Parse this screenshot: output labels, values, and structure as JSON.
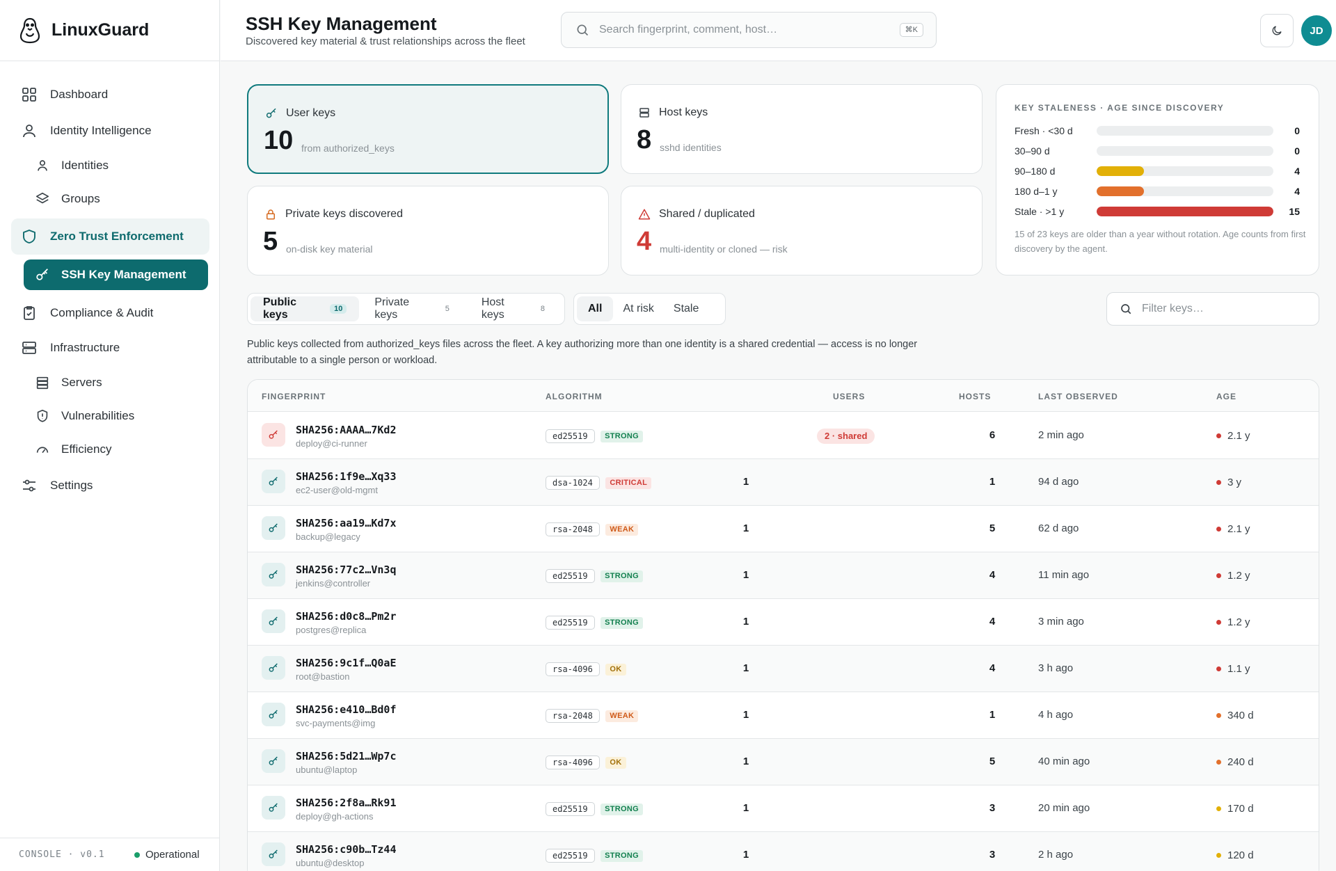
{
  "app": {
    "name": "LinuxGuard",
    "footer_version": "CONSOLE · v0.1",
    "footer_status": "Operational"
  },
  "sidebar": {
    "items": [
      {
        "label": "Dashboard",
        "icon": "grid-icon"
      },
      {
        "label": "Identity Intelligence",
        "icon": "user-icon"
      },
      {
        "label": "Identities",
        "icon": "user-icon"
      },
      {
        "label": "Groups",
        "icon": "layers-icon"
      },
      {
        "label": "Zero Trust Enforcement",
        "icon": "shield-icon"
      },
      {
        "label": "SSH Key Management",
        "icon": "key-icon"
      },
      {
        "label": "Compliance & Audit",
        "icon": "clipboard-check-icon"
      },
      {
        "label": "Infrastructure",
        "icon": "server-icon"
      },
      {
        "label": "Servers",
        "icon": "server-icon"
      },
      {
        "label": "Vulnerabilities",
        "icon": "shield-alert-icon"
      },
      {
        "label": "Efficiency",
        "icon": "gauge-icon"
      },
      {
        "label": "Settings",
        "icon": "sliders-icon"
      }
    ]
  },
  "header": {
    "title": "SSH Key Management",
    "subtitle": "Discovered key material & trust relationships across the fleet",
    "search_placeholder": "Search fingerprint, comment, host…",
    "search_shortcut": "⌘K",
    "avatar_initials": "JD"
  },
  "cards": {
    "user_keys": {
      "label": "User keys",
      "value": "10",
      "note": "from authorized_keys"
    },
    "host_keys": {
      "label": "Host keys",
      "value": "8",
      "note": "sshd identities"
    },
    "private_keys": {
      "label": "Private keys discovered",
      "value": "5",
      "note": "on-disk key material"
    },
    "shared": {
      "label": "Shared / duplicated",
      "value": "4",
      "note": "multi-identity or cloned — risk"
    }
  },
  "staleness": {
    "title": "KEY STALENESS · AGE SINCE DISCOVERY",
    "rows": [
      {
        "label": "Fresh · <30 d",
        "count": 0,
        "fraction": 0,
        "color": "#e2b007"
      },
      {
        "label": "30–90 d",
        "count": 0,
        "fraction": 0,
        "color": "#e2b007"
      },
      {
        "label": "90–180 d",
        "count": 4,
        "fraction": 0.267,
        "color": "#e2b007"
      },
      {
        "label": "180 d–1 y",
        "count": 4,
        "fraction": 0.267,
        "color": "#e2702c"
      },
      {
        "label": "Stale · >1 y",
        "count": 15,
        "fraction": 1.0,
        "color": "#cf3b36"
      }
    ],
    "note": "15 of 23 keys are older than a year without rotation. Age counts from first discovery by the agent."
  },
  "tabs": {
    "type": [
      {
        "label": "Public keys",
        "count": "10"
      },
      {
        "label": "Private keys",
        "count": "5"
      },
      {
        "label": "Host keys",
        "count": "8"
      }
    ],
    "filter": [
      "All",
      "At risk",
      "Stale"
    ],
    "filter_placeholder": "Filter keys…"
  },
  "description": "Public keys collected from authorized_keys files across the fleet. A key authorizing more than one identity is a shared credential — access is no longer attributable to a single person or workload.",
  "table": {
    "columns": [
      "FINGERPRINT",
      "ALGORITHM",
      "USERS",
      "HOSTS",
      "LAST OBSERVED",
      "AGE"
    ],
    "rows": [
      {
        "fingerprint": "SHA256:AAAA…7Kd2",
        "comment": "deploy@ci-runner",
        "algorithm": "ed25519",
        "strength": "STRONG",
        "users": "2 · shared",
        "hosts": "6",
        "last": "2 min ago",
        "age": "2.1 y",
        "age_color": "#cf3b36"
      },
      {
        "fingerprint": "SHA256:1f9e…Xq33",
        "comment": "ec2-user@old-mgmt",
        "algorithm": "dsa-1024",
        "strength": "CRITICAL",
        "users": "1",
        "hosts": "1",
        "last": "94 d ago",
        "age": "3 y",
        "age_color": "#cf3b36"
      },
      {
        "fingerprint": "SHA256:aa19…Kd7x",
        "comment": "backup@legacy",
        "algorithm": "rsa-2048",
        "strength": "WEAK",
        "users": "1",
        "hosts": "5",
        "last": "62 d ago",
        "age": "2.1 y",
        "age_color": "#cf3b36"
      },
      {
        "fingerprint": "SHA256:77c2…Vn3q",
        "comment": "jenkins@controller",
        "algorithm": "ed25519",
        "strength": "STRONG",
        "users": "1",
        "hosts": "4",
        "last": "11 min ago",
        "age": "1.2 y",
        "age_color": "#cf3b36"
      },
      {
        "fingerprint": "SHA256:d0c8…Pm2r",
        "comment": "postgres@replica",
        "algorithm": "ed25519",
        "strength": "STRONG",
        "users": "1",
        "hosts": "4",
        "last": "3 min ago",
        "age": "1.2 y",
        "age_color": "#cf3b36"
      },
      {
        "fingerprint": "SHA256:9c1f…Q0aE",
        "comment": "root@bastion",
        "algorithm": "rsa-4096",
        "strength": "OK",
        "users": "1",
        "hosts": "4",
        "last": "3 h ago",
        "age": "1.1 y",
        "age_color": "#cf3b36"
      },
      {
        "fingerprint": "SHA256:e410…Bd0f",
        "comment": "svc-payments@img",
        "algorithm": "rsa-2048",
        "strength": "WEAK",
        "users": "1",
        "hosts": "1",
        "last": "4 h ago",
        "age": "340 d",
        "age_color": "#e2702c"
      },
      {
        "fingerprint": "SHA256:5d21…Wp7c",
        "comment": "ubuntu@laptop",
        "algorithm": "rsa-4096",
        "strength": "OK",
        "users": "1",
        "hosts": "5",
        "last": "40 min ago",
        "age": "240 d",
        "age_color": "#e2702c"
      },
      {
        "fingerprint": "SHA256:2f8a…Rk91",
        "comment": "deploy@gh-actions",
        "algorithm": "ed25519",
        "strength": "STRONG",
        "users": "1",
        "hosts": "3",
        "last": "20 min ago",
        "age": "170 d",
        "age_color": "#e2b007"
      },
      {
        "fingerprint": "SHA256:c90b…Tz44",
        "comment": "ubuntu@desktop",
        "algorithm": "ed25519",
        "strength": "STRONG",
        "users": "1",
        "hosts": "3",
        "last": "2 h ago",
        "age": "120 d",
        "age_color": "#e2b007"
      }
    ]
  }
}
